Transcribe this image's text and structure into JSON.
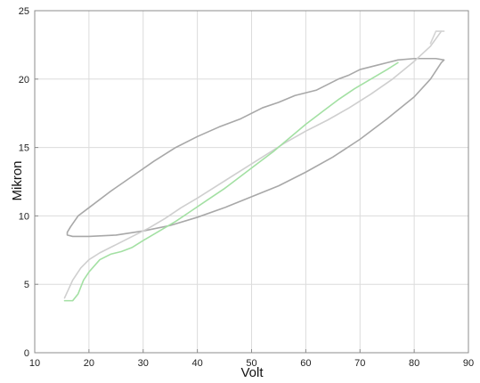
{
  "chart_data": {
    "type": "line",
    "title": "",
    "xlabel": "Volt",
    "ylabel": "Mikron",
    "xlim": [
      10,
      90
    ],
    "ylim": [
      0,
      25
    ],
    "x_ticks": [
      10,
      20,
      30,
      40,
      50,
      60,
      70,
      80,
      90
    ],
    "y_ticks": [
      0,
      5,
      10,
      15,
      20,
      25
    ],
    "grid": true,
    "legend": "none",
    "series": [
      {
        "color": "#a8a8a8",
        "x": [
          84,
          83,
          80,
          77,
          75,
          73,
          70,
          68,
          66,
          62,
          58,
          55,
          52,
          48,
          44,
          40,
          36,
          32,
          28,
          24,
          20,
          18,
          16.6,
          16,
          16,
          17,
          20,
          25,
          30,
          35,
          40,
          45,
          50,
          55,
          60,
          65,
          70,
          75,
          80,
          83,
          85,
          85.5,
          84
        ],
        "y": [
          21.5,
          21.5,
          21.5,
          21.4,
          21.2,
          21.0,
          20.7,
          20.3,
          20.0,
          19.2,
          18.8,
          18.3,
          17.9,
          17.1,
          16.5,
          15.8,
          15.0,
          14.0,
          12.9,
          11.8,
          10.6,
          10.0,
          9.2,
          8.8,
          8.6,
          8.5,
          8.5,
          8.6,
          8.9,
          9.3,
          9.9,
          10.6,
          11.4,
          12.2,
          13.2,
          14.3,
          15.6,
          17.1,
          18.7,
          20.0,
          21.2,
          21.4,
          21.5
        ]
      },
      {
        "color": "#cfcfcf",
        "x": [
          15.5,
          17,
          18.5,
          20,
          22,
          25,
          28,
          31,
          34,
          37,
          40,
          44,
          48,
          52,
          56,
          60,
          64,
          68,
          72,
          76,
          80,
          83,
          85
        ],
        "y": [
          4.0,
          5.3,
          6.2,
          6.8,
          7.3,
          7.9,
          8.5,
          9.1,
          9.8,
          10.6,
          11.3,
          12.3,
          13.3,
          14.3,
          15.3,
          16.2,
          17.0,
          17.9,
          18.9,
          20.0,
          21.3,
          22.4,
          23.5
        ]
      },
      {
        "color": "#a3e0a3",
        "x": [
          15.5,
          17,
          18,
          19,
          20,
          22,
          24,
          26,
          28,
          30,
          33,
          36,
          39,
          42,
          45,
          48,
          51,
          54,
          57,
          60,
          63,
          66,
          69,
          72,
          75,
          77
        ],
        "y": [
          3.8,
          3.8,
          4.3,
          5.3,
          5.9,
          6.8,
          7.2,
          7.4,
          7.7,
          8.2,
          8.9,
          9.6,
          10.4,
          11.2,
          12.0,
          12.9,
          13.8,
          14.7,
          15.7,
          16.7,
          17.6,
          18.5,
          19.3,
          20.0,
          20.7,
          21.2
        ]
      },
      {
        "color": "#d4d4d4",
        "x": [
          83,
          84,
          85,
          85.5,
          85,
          84,
          83
        ],
        "y": [
          22.6,
          23.5,
          23.5,
          23.5,
          23.5,
          23.5,
          22.6
        ]
      }
    ]
  }
}
